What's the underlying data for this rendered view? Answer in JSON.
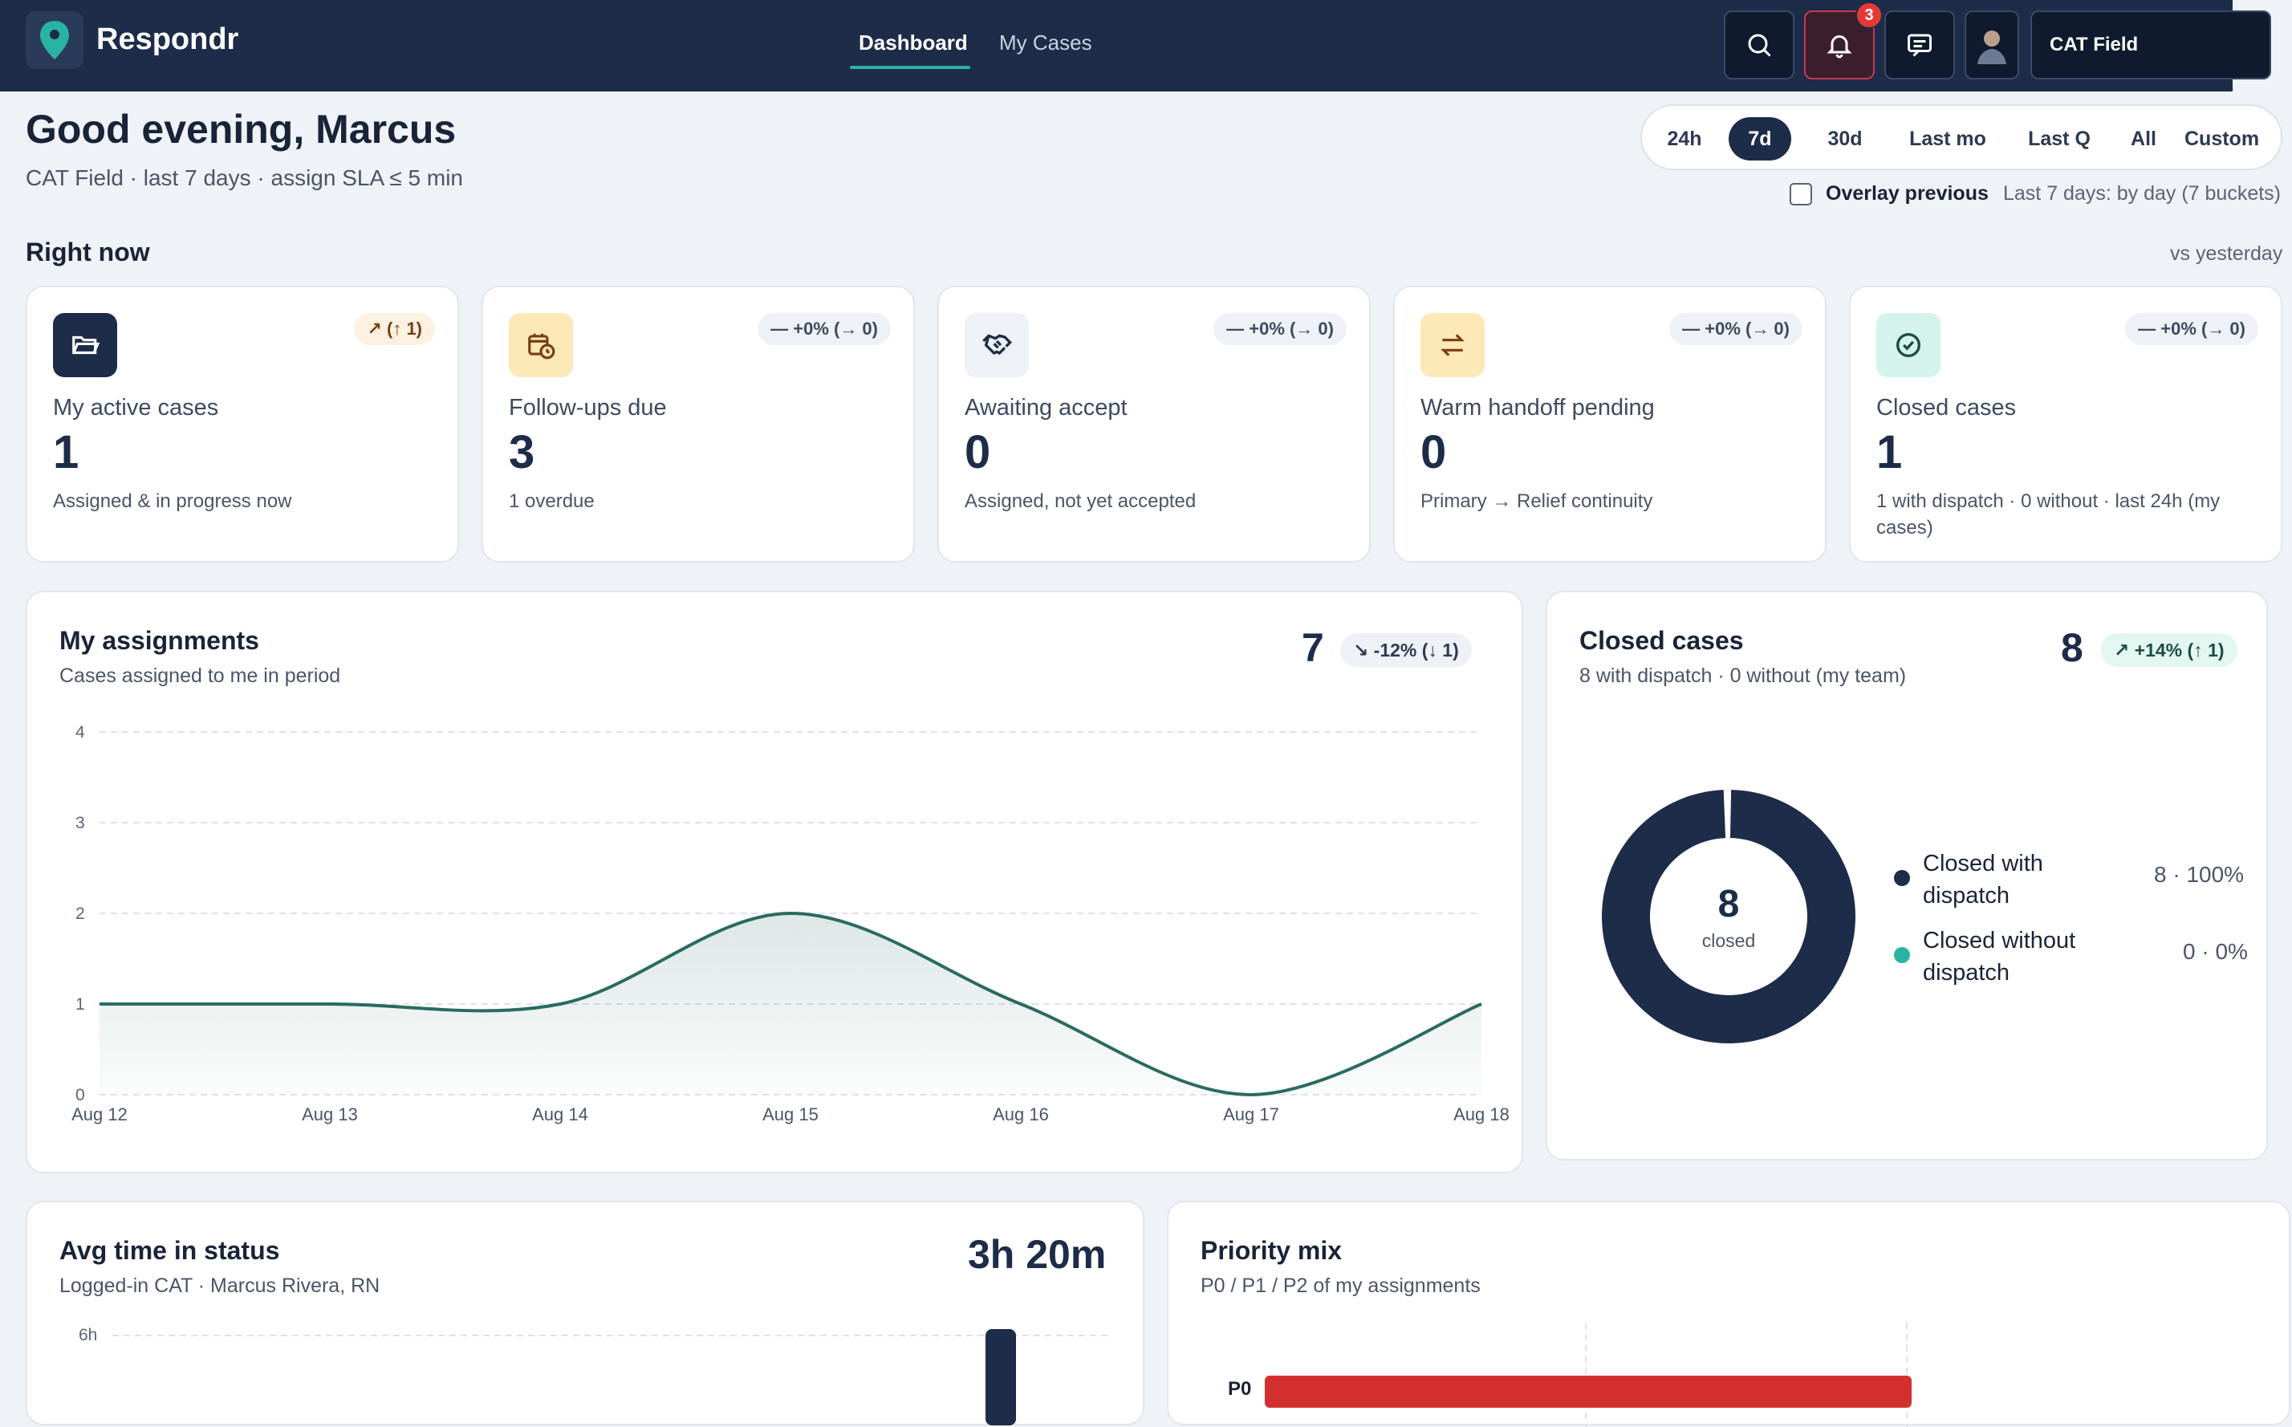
{
  "app": {
    "name": "Respondr"
  },
  "nav": {
    "tabs": [
      {
        "label": "Dashboard"
      },
      {
        "label": "My Cases"
      }
    ]
  },
  "header": {
    "notification_count": "3",
    "org": "CAT Field"
  },
  "greeting": {
    "title": "Good evening, Marcus",
    "subtitle": "CAT Field · last 7 days · assign SLA ≤ 5 min"
  },
  "range": {
    "options": [
      "24h",
      "7d",
      "30d",
      "Last mo",
      "Last Q",
      "All",
      "Custom"
    ],
    "selected": "7d",
    "overlay_label": "Overlay previous",
    "note": "Last 7 days: by day (7 buckets)"
  },
  "right_now": {
    "title": "Right now",
    "note": "vs yesterday"
  },
  "kpis": [
    {
      "label": "My active cases",
      "value": "1",
      "sub": "Assigned & in progress now",
      "delta": "↗ (↑ 1)",
      "icon": "folder-open-icon"
    },
    {
      "label": "Follow-ups due",
      "value": "3",
      "sub": "1 overdue",
      "delta": "— +0% (→ 0)",
      "icon": "calendar-clock-icon"
    },
    {
      "label": "Awaiting accept",
      "value": "0",
      "sub": "Assigned, not yet accepted",
      "delta": "— +0% (→ 0)",
      "icon": "handshake-icon"
    },
    {
      "label": "Warm handoff pending",
      "value": "0",
      "sub": "Primary → Relief continuity",
      "delta": "— +0% (→ 0)",
      "icon": "arrows-swap-icon"
    },
    {
      "label": "Closed cases",
      "value": "1",
      "sub": "1 with dispatch · 0 without · last 24h (my cases)",
      "delta": "— +0% (→ 0)",
      "icon": "check-circle-icon"
    }
  ],
  "assignments": {
    "title": "My assignments",
    "subtitle": "Cases assigned to me in period",
    "total": "7",
    "delta": "↘ -12% (↓ 1)",
    "chart_data": {
      "type": "area",
      "x": [
        "Aug 12",
        "Aug 13",
        "Aug 14",
        "Aug 15",
        "Aug 16",
        "Aug 17",
        "Aug 18"
      ],
      "y_ticks": [
        "0",
        "1",
        "2",
        "3",
        "4"
      ],
      "values": [
        1,
        1,
        1,
        2,
        1,
        0,
        1
      ],
      "ylim": [
        0,
        4
      ],
      "color": "#2a6b60"
    }
  },
  "closed_cases": {
    "title": "Closed cases",
    "subtitle": "8 with dispatch · 0 without (my team)",
    "total": "8",
    "delta": "↗ +14% (↑ 1)",
    "center_value": "8",
    "center_label": "closed",
    "chart_data": {
      "type": "pie",
      "categories": [
        "Closed with dispatch",
        "Closed without dispatch"
      ],
      "values": [
        8,
        0
      ],
      "value_labels": [
        "8 · 100%",
        "0 · 0%"
      ],
      "colors": [
        "#1d2c48",
        "#2ab3a3"
      ]
    }
  },
  "avg_time": {
    "title": "Avg time in status",
    "subtitle": "Logged-in CAT · Marcus Rivera, RN",
    "total": "3h 20m",
    "chart_data": {
      "type": "bar",
      "y_ticks": [
        "6h"
      ]
    }
  },
  "priority": {
    "title": "Priority mix",
    "subtitle": "P0 / P1 / P2 of my assignments",
    "chart_data": {
      "type": "bar",
      "categories": [
        "P0"
      ],
      "color": "#d32f2f"
    }
  }
}
